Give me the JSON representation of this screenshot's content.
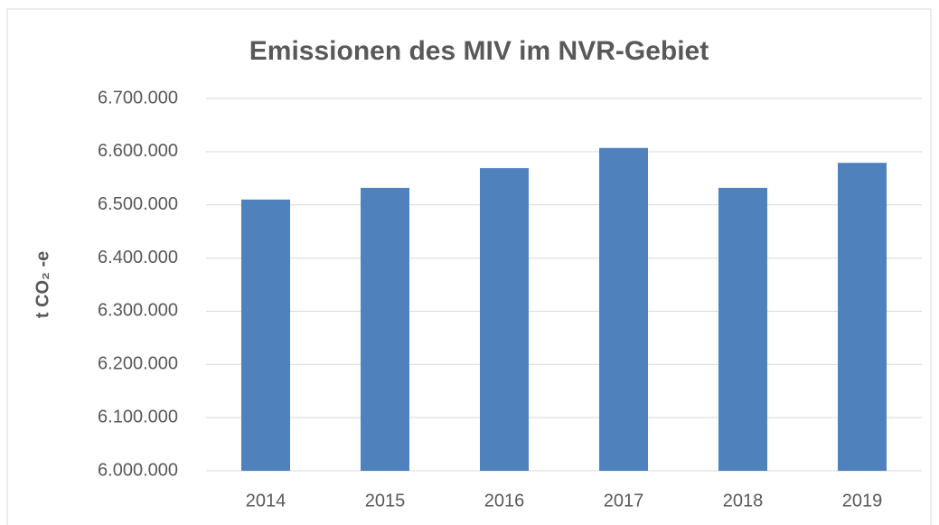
{
  "chart_data": {
    "type": "bar",
    "title": "Emissionen des MIV im NVR-Gebiet",
    "y_label": "t CO₂ -e",
    "categories": [
      "2014",
      "2015",
      "2016",
      "2017",
      "2018",
      "2019"
    ],
    "values": [
      6510000,
      6532000,
      6569000,
      6607000,
      6532000,
      6579000
    ],
    "color": "#4f81bd",
    "ylim": [
      6000000,
      6700000
    ],
    "yticks": [
      {
        "value": 6000000,
        "label": "6.000.000"
      },
      {
        "value": 6100000,
        "label": "6.100.000"
      },
      {
        "value": 6200000,
        "label": "6.200.000"
      },
      {
        "value": 6300000,
        "label": "6.300.000"
      },
      {
        "value": 6400000,
        "label": "6.400.000"
      },
      {
        "value": 6500000,
        "label": "6.500.000"
      },
      {
        "value": 6600000,
        "label": "6.600.000"
      },
      {
        "value": 6700000,
        "label": "6.700.000"
      }
    ],
    "grid": true
  }
}
